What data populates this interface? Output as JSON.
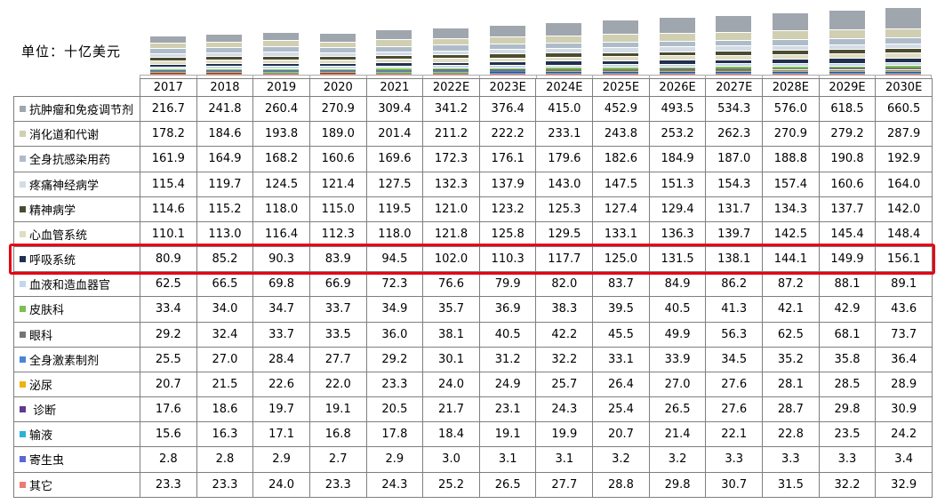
{
  "unit_label": "单位：十亿美元",
  "highlight_color": "#e60012",
  "grid_border_color": "#7f7f7f",
  "axis_color": "#ababab",
  "chart_data": {
    "type": "bar",
    "stacked": true,
    "title": "",
    "xlabel": "",
    "ylabel": "十亿美元",
    "legend_position": "table-row-labels",
    "categories": [
      "2017",
      "2018",
      "2019",
      "2020",
      "2021",
      "2022E",
      "2023E",
      "2024E",
      "2025E",
      "2026E",
      "2027E",
      "2028E",
      "2029E",
      "2030E"
    ],
    "series": [
      {
        "name": "抗肿瘤和免疫调节剂",
        "color": "#a0a6ae",
        "highlight": false,
        "values": [
          "216.7",
          "241.8",
          "260.4",
          "270.9",
          "309.4",
          "341.2",
          "376.4",
          "415.0",
          "452.9",
          "493.5",
          "534.3",
          "576.0",
          "618.5",
          "660.5"
        ]
      },
      {
        "name": "消化道和代谢",
        "color": "#d1cfb2",
        "highlight": false,
        "values": [
          "178.2",
          "184.6",
          "193.8",
          "189.0",
          "201.4",
          "211.2",
          "222.2",
          "233.1",
          "243.8",
          "253.2",
          "262.3",
          "270.9",
          "279.2",
          "287.9"
        ]
      },
      {
        "name": "全身抗感染用药",
        "color": "#aebcca",
        "highlight": false,
        "values": [
          "161.9",
          "164.9",
          "168.2",
          "160.6",
          "169.6",
          "172.3",
          "176.1",
          "179.6",
          "182.6",
          "184.9",
          "187.0",
          "188.8",
          "190.8",
          "192.9"
        ]
      },
      {
        "name": "疼痛神经病学",
        "color": "#d3dce5",
        "highlight": false,
        "values": [
          "115.4",
          "119.7",
          "124.5",
          "121.4",
          "127.5",
          "132.3",
          "137.9",
          "143.0",
          "147.5",
          "151.3",
          "154.3",
          "157.4",
          "160.6",
          "164.0"
        ]
      },
      {
        "name": "精神病学",
        "color": "#4b4b31",
        "highlight": false,
        "values": [
          "114.6",
          "115.2",
          "118.0",
          "115.0",
          "119.5",
          "121.0",
          "123.2",
          "125.3",
          "127.4",
          "129.4",
          "131.7",
          "134.3",
          "137.7",
          "142.0"
        ]
      },
      {
        "name": "心血管系统",
        "color": "#e0ddc4",
        "highlight": false,
        "values": [
          "110.1",
          "113.0",
          "116.4",
          "112.3",
          "118.0",
          "121.8",
          "125.8",
          "129.5",
          "133.1",
          "136.3",
          "139.7",
          "142.5",
          "145.4",
          "148.4"
        ]
      },
      {
        "name": "呼吸系统",
        "color": "#20304f",
        "highlight": true,
        "values": [
          "80.9",
          "85.2",
          "90.3",
          "83.9",
          "94.5",
          "102.0",
          "110.3",
          "117.7",
          "125.0",
          "131.5",
          "138.1",
          "144.1",
          "149.9",
          "156.1"
        ]
      },
      {
        "name": "血液和造血器官",
        "color": "#c4d6ea",
        "highlight": false,
        "values": [
          "62.5",
          "66.5",
          "69.8",
          "66.9",
          "72.3",
          "76.6",
          "79.9",
          "82.0",
          "83.7",
          "84.9",
          "86.2",
          "87.2",
          "88.1",
          "89.1"
        ]
      },
      {
        "name": "皮肤科",
        "color": "#7dbf52",
        "highlight": false,
        "values": [
          "33.4",
          "34.0",
          "34.7",
          "33.7",
          "34.9",
          "35.7",
          "36.9",
          "38.3",
          "39.5",
          "40.5",
          "41.3",
          "42.1",
          "42.9",
          "43.6"
        ]
      },
      {
        "name": "眼科",
        "color": "#757575",
        "highlight": false,
        "values": [
          "29.2",
          "32.4",
          "33.7",
          "33.5",
          "36.0",
          "38.1",
          "40.5",
          "42.2",
          "45.5",
          "49.9",
          "56.3",
          "62.5",
          "68.1",
          "73.7"
        ]
      },
      {
        "name": "全身激素制剂",
        "color": "#4a86d8",
        "highlight": false,
        "values": [
          "25.5",
          "27.0",
          "28.4",
          "27.7",
          "29.2",
          "30.1",
          "31.2",
          "32.2",
          "33.1",
          "33.9",
          "34.5",
          "35.2",
          "35.8",
          "36.4"
        ]
      },
      {
        "name": "泌尿",
        "color": "#eeb211",
        "highlight": false,
        "values": [
          "20.7",
          "21.5",
          "22.6",
          "22.0",
          "23.3",
          "24.0",
          "24.9",
          "25.7",
          "26.4",
          "27.0",
          "27.6",
          "28.1",
          "28.5",
          "28.9"
        ]
      },
      {
        "name": " 诊断",
        "color": "#5f3a8e",
        "highlight": false,
        "values": [
          "17.6",
          "18.6",
          "19.7",
          "19.1",
          "20.5",
          "21.7",
          "23.1",
          "24.3",
          "25.4",
          "26.5",
          "27.6",
          "28.7",
          "29.8",
          "30.9"
        ]
      },
      {
        "name": "输液",
        "color": "#28b4d8",
        "highlight": false,
        "values": [
          "15.6",
          "16.3",
          "17.1",
          "16.8",
          "17.8",
          "18.4",
          "19.1",
          "19.9",
          "20.7",
          "21.4",
          "22.1",
          "22.8",
          "23.5",
          "24.2"
        ]
      },
      {
        "name": "寄生虫",
        "color": "#5a67d5",
        "highlight": false,
        "values": [
          "2.8",
          "2.8",
          "2.9",
          "2.7",
          "2.9",
          "3.0",
          "3.1",
          "3.1",
          "3.2",
          "3.2",
          "3.3",
          "3.3",
          "3.3",
          "3.4"
        ]
      },
      {
        "name": "其它",
        "color": "#ee7a72",
        "highlight": false,
        "values": [
          "23.3",
          "23.3",
          "24.0",
          "23.3",
          "24.3",
          "25.2",
          "26.5",
          "27.7",
          "28.8",
          "29.8",
          "30.7",
          "31.5",
          "32.2",
          "32.9"
        ]
      }
    ]
  }
}
